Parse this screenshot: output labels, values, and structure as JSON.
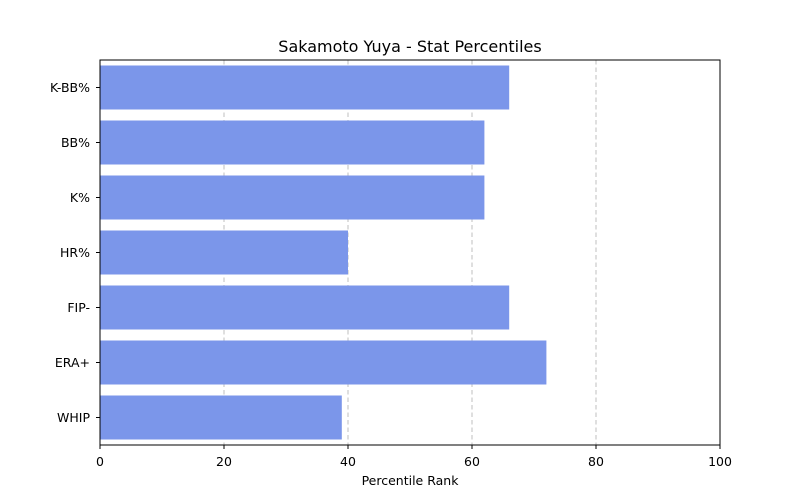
{
  "chart_data": {
    "type": "bar",
    "orientation": "horizontal",
    "title": "Sakamoto Yuya - Stat Percentiles",
    "xlabel": "Percentile Rank",
    "ylabel": "",
    "xlim": [
      0,
      100
    ],
    "xticks": [
      0,
      20,
      40,
      60,
      80,
      100
    ],
    "grid": "x-dashed",
    "bar_color": "#7b96ea",
    "categories": [
      "K-BB%",
      "BB%",
      "K%",
      "HR%",
      "FIP-",
      "ERA+",
      "WHIP"
    ],
    "values": [
      66,
      62,
      62,
      40,
      66,
      72,
      39
    ]
  }
}
